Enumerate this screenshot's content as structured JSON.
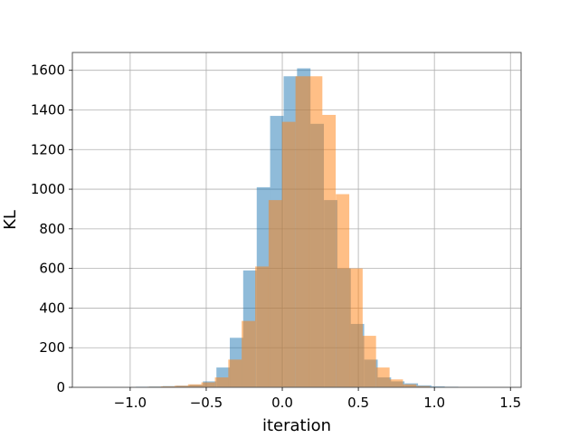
{
  "chart_data": {
    "type": "bar",
    "title": "",
    "xlabel": "iteration",
    "ylabel": "KL",
    "xlim": [
      -1.38,
      1.57
    ],
    "ylim": [
      0,
      1690
    ],
    "grid": true,
    "x_ticks": [
      -1.0,
      -0.5,
      0.0,
      0.5,
      1.0,
      1.5
    ],
    "x_tick_labels": [
      "−1.0",
      "−0.5",
      "0.0",
      "0.5",
      "1.0",
      "1.5"
    ],
    "y_ticks": [
      0,
      200,
      400,
      600,
      800,
      1000,
      1200,
      1400,
      1600
    ],
    "y_tick_labels": [
      "0",
      "200",
      "400",
      "600",
      "800",
      "1000",
      "1200",
      "1400",
      "1600"
    ],
    "series": [
      {
        "color": "#1f77b4",
        "opacity": 0.5,
        "bin_width": 0.0884,
        "bins": [
          [
            -1.14,
            1
          ],
          [
            -1.052,
            2
          ],
          [
            -0.963,
            3
          ],
          [
            -0.875,
            4
          ],
          [
            -0.787,
            6
          ],
          [
            -0.698,
            8
          ],
          [
            -0.61,
            12
          ],
          [
            -0.522,
            30
          ],
          [
            -0.433,
            100
          ],
          [
            -0.345,
            250
          ],
          [
            -0.257,
            590
          ],
          [
            -0.168,
            1010
          ],
          [
            -0.08,
            1370
          ],
          [
            0.009,
            1570
          ],
          [
            0.097,
            1610
          ],
          [
            0.185,
            1330
          ],
          [
            0.274,
            945
          ],
          [
            0.362,
            600
          ],
          [
            0.45,
            320
          ],
          [
            0.539,
            140
          ],
          [
            0.627,
            50
          ],
          [
            0.715,
            30
          ],
          [
            0.804,
            20
          ],
          [
            0.892,
            10
          ],
          [
            0.98,
            5
          ],
          [
            1.069,
            3
          ],
          [
            1.157,
            2
          ],
          [
            1.245,
            1
          ],
          [
            1.334,
            1
          ],
          [
            1.422,
            1
          ]
        ]
      },
      {
        "color": "#ff7f0e",
        "opacity": 0.5,
        "bin_width": 0.0884,
        "bins": [
          [
            -0.885,
            3
          ],
          [
            -0.797,
            5
          ],
          [
            -0.708,
            8
          ],
          [
            -0.62,
            15
          ],
          [
            -0.532,
            25
          ],
          [
            -0.443,
            50
          ],
          [
            -0.355,
            140
          ],
          [
            -0.267,
            335
          ],
          [
            -0.178,
            610
          ],
          [
            -0.09,
            945
          ],
          [
            -0.002,
            1340
          ],
          [
            0.087,
            1570
          ],
          [
            0.175,
            1570
          ],
          [
            0.263,
            1375
          ],
          [
            0.352,
            975
          ],
          [
            0.44,
            600
          ],
          [
            0.528,
            260
          ],
          [
            0.617,
            100
          ],
          [
            0.705,
            40
          ],
          [
            0.793,
            15
          ],
          [
            0.882,
            6
          ]
        ]
      }
    ]
  }
}
